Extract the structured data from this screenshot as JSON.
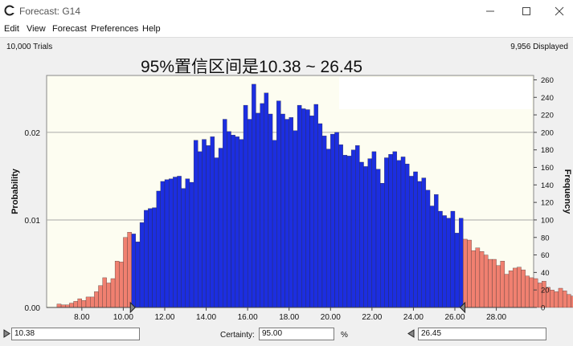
{
  "window": {
    "title": "Forecast: G14",
    "minimize_icon": "minimize-icon",
    "maximize_icon": "maximize-icon",
    "close_icon": "close-icon"
  },
  "menu": [
    "Edit",
    "View",
    "Forecast",
    "Preferences",
    "Help"
  ],
  "status": {
    "trials": "10,000 Trials",
    "displayed": "9,956 Displayed"
  },
  "overlay_title": "95%置信区间是10.38 ~ 26.45",
  "controls": {
    "left_value": "10.38",
    "certainty_label": "Certainty:",
    "certainty_value": "95.00",
    "percent": "%",
    "right_value": "26.45"
  },
  "colors": {
    "in_range": "#1c2ee0",
    "out_range": "#f08070",
    "plot_bg": "#fdfdf1",
    "grid": "#a8a8a8"
  },
  "chart_data": {
    "type": "bar",
    "ylabel_left": "Probability",
    "ylabel_right": "Frequency",
    "x_ticks": [
      "8.00",
      "10.00",
      "12.00",
      "14.00",
      "16.00",
      "18.00",
      "20.00",
      "22.00",
      "24.00",
      "26.00",
      "28.00"
    ],
    "x_tick_values": [
      8,
      10,
      12,
      14,
      16,
      18,
      20,
      22,
      24,
      26,
      28
    ],
    "y_left_ticks": [
      "0.00",
      "0.01",
      "0.02"
    ],
    "y_left_tick_values": [
      0,
      0.01,
      0.02
    ],
    "y_right_ticks": [
      "0",
      "20",
      "40",
      "60",
      "80",
      "100",
      "120",
      "140",
      "160",
      "180",
      "200",
      "220",
      "240",
      "260"
    ],
    "y_right_tick_values": [
      0,
      20,
      40,
      60,
      80,
      100,
      120,
      140,
      160,
      180,
      200,
      220,
      240,
      260
    ],
    "xlim": [
      6.3,
      29.8
    ],
    "ylim_frequency": [
      0,
      265
    ],
    "certainty_range": [
      10.38,
      26.45
    ],
    "bin_width": 0.2,
    "bins_x_start": 6.8,
    "frequencies": [
      4,
      3,
      3,
      5,
      7,
      10,
      8,
      12,
      12,
      18,
      25,
      34,
      28,
      33,
      53,
      52,
      80,
      86,
      84,
      75,
      97,
      111,
      113,
      114,
      133,
      144,
      146,
      147,
      149,
      150,
      136,
      147,
      143,
      191,
      178,
      192,
      185,
      195,
      171,
      182,
      215,
      201,
      197,
      195,
      192,
      231,
      215,
      255,
      222,
      233,
      245,
      221,
      191,
      236,
      221,
      215,
      217,
      202,
      231,
      227,
      226,
      219,
      232,
      210,
      196,
      181,
      198,
      200,
      186,
      174,
      173,
      180,
      185,
      166,
      161,
      170,
      178,
      158,
      142,
      171,
      175,
      178,
      168,
      172,
      164,
      150,
      155,
      144,
      148,
      134,
      116,
      129,
      110,
      105,
      102,
      110,
      85,
      102,
      78,
      77,
      65,
      68,
      64,
      60,
      55,
      55,
      48,
      53,
      38,
      42,
      45,
      46,
      43,
      36,
      34,
      33,
      28,
      30,
      23,
      20,
      18,
      22,
      19,
      15,
      13,
      14,
      11,
      12,
      10,
      10,
      6,
      4,
      3
    ]
  }
}
